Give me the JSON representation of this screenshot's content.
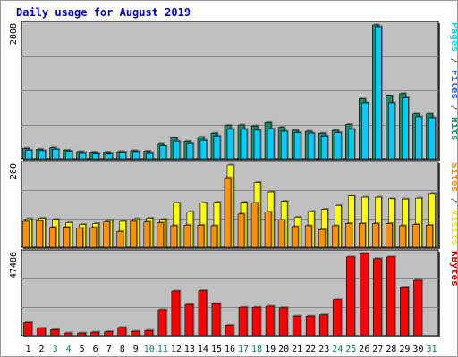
{
  "chart_data": {
    "type": "bar",
    "title": "Daily usage for August 2019",
    "days": [
      "1",
      "2",
      "3",
      "4",
      "5",
      "6",
      "7",
      "8",
      "9",
      "10",
      "11",
      "12",
      "13",
      "14",
      "15",
      "16",
      "17",
      "18",
      "19",
      "20",
      "21",
      "22",
      "23",
      "24",
      "25",
      "26",
      "27",
      "28",
      "29",
      "30",
      "31"
    ],
    "weekend_days": [
      "3",
      "4",
      "10",
      "11",
      "17",
      "18",
      "24",
      "25",
      "31"
    ],
    "panels": {
      "hits": {
        "axis_max_label": "2808",
        "max": 2808,
        "series": [
          {
            "name": "Hits",
            "values": [
              220,
              200,
              230,
              180,
              150,
              140,
              140,
              150,
              170,
              160,
              320,
              440,
              370,
              460,
              540,
              700,
              710,
              690,
              760,
              660,
              600,
              580,
              540,
              600,
              720,
              1260,
              2808,
              1320,
              1370,
              940,
              940
            ]
          },
          {
            "name": "Files",
            "values": [
              180,
              170,
              200,
              160,
              130,
              120,
              120,
              140,
              150,
              130,
              270,
              370,
              330,
              390,
              480,
              620,
              620,
              600,
              630,
              580,
              550,
              540,
              480,
              550,
              620,
              1180,
              2770,
              1180,
              1280,
              880,
              860
            ]
          },
          {
            "name": "Pages",
            "values": [
              60,
              50,
              60,
              40,
              30,
              30,
              30,
              40,
              40,
              30,
              60,
              80,
              70,
              100,
              120,
              160,
              150,
              140,
              130,
              120,
              110,
              100,
              90,
              110,
              140,
              240,
              420,
              190,
              230,
              140,
              140
            ]
          }
        ]
      },
      "visits": {
        "axis_max_label": "260",
        "max": 260,
        "series": [
          {
            "name": "Visits",
            "values": [
              90,
              92,
              88,
              78,
              72,
              75,
              85,
              82,
              90,
              92,
              88,
              140,
              112,
              140,
              142,
              260,
              142,
              205,
              175,
              145,
              95,
              113,
              120,
              132,
              162,
              158,
              158,
              153,
              152,
              155,
              170
            ]
          },
          {
            "name": "Sites",
            "values": [
              82,
              84,
              63,
              63,
              60,
              62,
              80,
              50,
              82,
              80,
              77,
              68,
              70,
              70,
              68,
              220,
              105,
              140,
              112,
              86,
              65,
              68,
              56,
              68,
              75,
              75,
              75,
              75,
              68,
              72,
              70
            ]
          }
        ]
      },
      "kbytes": {
        "axis_max_label": "47486",
        "max": 47486,
        "series": [
          {
            "name": "KBytes",
            "values": [
              7500,
              4300,
              3400,
              1500,
              1500,
              2000,
              2300,
              4700,
              2500,
              3000,
              15000,
              25800,
              18000,
              26000,
              18500,
              6000,
              16400,
              16400,
              17000,
              16100,
              11300,
              11300,
              12000,
              20800,
              45500,
              47486,
              44500,
              45500,
              27700,
              32000,
              0
            ]
          }
        ]
      }
    },
    "legends": {
      "hits": [
        {
          "text": "Pages",
          "color": "#00e0ff"
        },
        {
          "text": " / ",
          "color": "#555555"
        },
        {
          "text": "Files",
          "color": "#1f5fd0"
        },
        {
          "text": " / ",
          "color": "#555555"
        },
        {
          "text": "Hits",
          "color": "#1e9070"
        }
      ],
      "visits": [
        {
          "text": "Sites",
          "color": "#ff8c00"
        },
        {
          "text": " / ",
          "color": "#555555"
        },
        {
          "text": "Visits",
          "color": "#e8e820"
        }
      ],
      "kbytes": [
        {
          "text": "KBytes",
          "color": "#e00000"
        }
      ]
    },
    "colors": {
      "hits": "#1e8a66",
      "files": "#1f5fd0",
      "pages": "#00ccff",
      "visits": "#ffff00",
      "sites": "#ff9000",
      "kbytes": "#ff0000",
      "weekday_label": "#000000",
      "weekend_label": "#00805a",
      "title": "#0000c0",
      "panel_bg": "#c0c0c0",
      "grid": "#888888"
    }
  }
}
